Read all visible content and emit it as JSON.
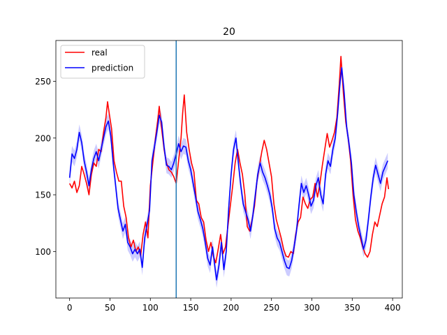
{
  "chart_data": {
    "type": "line",
    "title": "20",
    "xlabel": "",
    "ylabel": "",
    "xlim": [
      -17,
      412
    ],
    "ylim": [
      59,
      286
    ],
    "xticks": [
      0,
      50,
      100,
      150,
      200,
      250,
      300,
      350,
      400
    ],
    "yticks": [
      100,
      150,
      200,
      250
    ],
    "xtick_labels": [
      "0",
      "50",
      "100",
      "150",
      "200",
      "250",
      "300",
      "350",
      "400"
    ],
    "ytick_labels": [
      "100",
      "150",
      "200",
      "250"
    ],
    "legend": {
      "position": "top-left",
      "entries": [
        "real",
        "prediction"
      ]
    },
    "vline": {
      "x": 132,
      "color": "#1f77b4"
    },
    "series": [
      {
        "name": "real",
        "color": "#ff0000",
        "points": [
          [
            0,
            160
          ],
          [
            3,
            156
          ],
          [
            6,
            162
          ],
          [
            9,
            152
          ],
          [
            12,
            158
          ],
          [
            15,
            175
          ],
          [
            18,
            168
          ],
          [
            21,
            160
          ],
          [
            24,
            150
          ],
          [
            27,
            168
          ],
          [
            30,
            178
          ],
          [
            33,
            175
          ],
          [
            36,
            190
          ],
          [
            39,
            188
          ],
          [
            42,
            205
          ],
          [
            45,
            218
          ],
          [
            47,
            232
          ],
          [
            49,
            222
          ],
          [
            52,
            208
          ],
          [
            55,
            180
          ],
          [
            58,
            170
          ],
          [
            61,
            162
          ],
          [
            64,
            162
          ],
          [
            67,
            140
          ],
          [
            70,
            130
          ],
          [
            73,
            112
          ],
          [
            76,
            104
          ],
          [
            79,
            110
          ],
          [
            82,
            100
          ],
          [
            85,
            104
          ],
          [
            88,
            96
          ],
          [
            91,
            115
          ],
          [
            94,
            126
          ],
          [
            97,
            112
          ],
          [
            100,
            158
          ],
          [
            103,
            178
          ],
          [
            106,
            198
          ],
          [
            109,
            215
          ],
          [
            111,
            228
          ],
          [
            114,
            208
          ],
          [
            117,
            190
          ],
          [
            120,
            178
          ],
          [
            123,
            172
          ],
          [
            126,
            170
          ],
          [
            129,
            166
          ],
          [
            132,
            160
          ],
          [
            135,
            180
          ],
          [
            138,
            200
          ],
          [
            140,
            222
          ],
          [
            142,
            238
          ],
          [
            145,
            205
          ],
          [
            148,
            190
          ],
          [
            151,
            178
          ],
          [
            154,
            170
          ],
          [
            157,
            145
          ],
          [
            160,
            142
          ],
          [
            163,
            130
          ],
          [
            166,
            126
          ],
          [
            169,
            110
          ],
          [
            172,
            100
          ],
          [
            175,
            108
          ],
          [
            178,
            96
          ],
          [
            181,
            90
          ],
          [
            184,
            102
          ],
          [
            187,
            115
          ],
          [
            190,
            98
          ],
          [
            193,
            104
          ],
          [
            196,
            122
          ],
          [
            199,
            140
          ],
          [
            202,
            158
          ],
          [
            205,
            178
          ],
          [
            208,
            190
          ],
          [
            211,
            178
          ],
          [
            214,
            168
          ],
          [
            217,
            150
          ],
          [
            220,
            122
          ],
          [
            223,
            118
          ],
          [
            226,
            128
          ],
          [
            229,
            140
          ],
          [
            232,
            162
          ],
          [
            235,
            175
          ],
          [
            238,
            188
          ],
          [
            241,
            198
          ],
          [
            244,
            190
          ],
          [
            247,
            178
          ],
          [
            250,
            166
          ],
          [
            253,
            142
          ],
          [
            256,
            128
          ],
          [
            259,
            120
          ],
          [
            262,
            112
          ],
          [
            265,
            102
          ],
          [
            268,
            96
          ],
          [
            271,
            95
          ],
          [
            274,
            100
          ],
          [
            277,
            98
          ],
          [
            280,
            115
          ],
          [
            283,
            126
          ],
          [
            286,
            130
          ],
          [
            289,
            148
          ],
          [
            292,
            142
          ],
          [
            295,
            138
          ],
          [
            298,
            146
          ],
          [
            301,
            148
          ],
          [
            304,
            160
          ],
          [
            307,
            148
          ],
          [
            310,
            160
          ],
          [
            313,
            176
          ],
          [
            316,
            190
          ],
          [
            319,
            204
          ],
          [
            322,
            192
          ],
          [
            325,
            198
          ],
          [
            328,
            205
          ],
          [
            331,
            218
          ],
          [
            334,
            248
          ],
          [
            336,
            272
          ],
          [
            339,
            240
          ],
          [
            342,
            214
          ],
          [
            345,
            200
          ],
          [
            348,
            180
          ],
          [
            351,
            150
          ],
          [
            354,
            128
          ],
          [
            357,
            118
          ],
          [
            360,
            112
          ],
          [
            363,
            104
          ],
          [
            366,
            98
          ],
          [
            369,
            95
          ],
          [
            372,
            100
          ],
          [
            375,
            115
          ],
          [
            378,
            126
          ],
          [
            381,
            122
          ],
          [
            384,
            132
          ],
          [
            387,
            142
          ],
          [
            390,
            148
          ],
          [
            393,
            165
          ],
          [
            395,
            155
          ]
        ]
      },
      {
        "name": "prediction",
        "color": "#0000ff",
        "band_color": "#0000ff",
        "band_halfwidth": 7,
        "points": [
          [
            0,
            165
          ],
          [
            3,
            186
          ],
          [
            6,
            182
          ],
          [
            9,
            190
          ],
          [
            12,
            205
          ],
          [
            15,
            196
          ],
          [
            18,
            180
          ],
          [
            21,
            170
          ],
          [
            24,
            158
          ],
          [
            27,
            172
          ],
          [
            30,
            182
          ],
          [
            33,
            188
          ],
          [
            36,
            180
          ],
          [
            39,
            190
          ],
          [
            42,
            200
          ],
          [
            45,
            210
          ],
          [
            48,
            215
          ],
          [
            51,
            202
          ],
          [
            54,
            178
          ],
          [
            57,
            158
          ],
          [
            60,
            138
          ],
          [
            63,
            128
          ],
          [
            66,
            118
          ],
          [
            69,
            124
          ],
          [
            72,
            108
          ],
          [
            75,
            104
          ],
          [
            78,
            98
          ],
          [
            81,
            102
          ],
          [
            84,
            98
          ],
          [
            87,
            102
          ],
          [
            90,
            86
          ],
          [
            93,
            112
          ],
          [
            96,
            124
          ],
          [
            99,
            136
          ],
          [
            102,
            180
          ],
          [
            105,
            192
          ],
          [
            108,
            205
          ],
          [
            111,
            220
          ],
          [
            114,
            214
          ],
          [
            117,
            192
          ],
          [
            120,
            176
          ],
          [
            123,
            175
          ],
          [
            126,
            172
          ],
          [
            129,
            178
          ],
          [
            132,
            186
          ],
          [
            135,
            195
          ],
          [
            138,
            188
          ],
          [
            141,
            193
          ],
          [
            144,
            192
          ],
          [
            147,
            180
          ],
          [
            150,
            172
          ],
          [
            153,
            160
          ],
          [
            156,
            148
          ],
          [
            159,
            135
          ],
          [
            162,
            128
          ],
          [
            165,
            120
          ],
          [
            168,
            108
          ],
          [
            171,
            94
          ],
          [
            174,
            88
          ],
          [
            177,
            104
          ],
          [
            180,
            86
          ],
          [
            182,
            75
          ],
          [
            185,
            88
          ],
          [
            188,
            108
          ],
          [
            191,
            84
          ],
          [
            194,
            100
          ],
          [
            197,
            138
          ],
          [
            200,
            168
          ],
          [
            203,
            190
          ],
          [
            206,
            200
          ],
          [
            209,
            178
          ],
          [
            212,
            158
          ],
          [
            215,
            142
          ],
          [
            218,
            135
          ],
          [
            221,
            128
          ],
          [
            224,
            118
          ],
          [
            227,
            132
          ],
          [
            230,
            150
          ],
          [
            233,
            168
          ],
          [
            236,
            178
          ],
          [
            239,
            170
          ],
          [
            242,
            165
          ],
          [
            245,
            158
          ],
          [
            248,
            150
          ],
          [
            251,
            138
          ],
          [
            254,
            120
          ],
          [
            257,
            112
          ],
          [
            260,
            108
          ],
          [
            263,
            100
          ],
          [
            266,
            92
          ],
          [
            269,
            86
          ],
          [
            272,
            85
          ],
          [
            275,
            92
          ],
          [
            278,
            104
          ],
          [
            281,
            118
          ],
          [
            284,
            140
          ],
          [
            287,
            160
          ],
          [
            290,
            152
          ],
          [
            293,
            158
          ],
          [
            296,
            150
          ],
          [
            299,
            140
          ],
          [
            302,
            145
          ],
          [
            305,
            158
          ],
          [
            308,
            165
          ],
          [
            311,
            150
          ],
          [
            314,
            142
          ],
          [
            317,
            168
          ],
          [
            320,
            180
          ],
          [
            323,
            175
          ],
          [
            326,
            190
          ],
          [
            329,
            200
          ],
          [
            332,
            222
          ],
          [
            335,
            250
          ],
          [
            337,
            262
          ],
          [
            340,
            240
          ],
          [
            343,
            210
          ],
          [
            346,
            195
          ],
          [
            349,
            178
          ],
          [
            352,
            150
          ],
          [
            355,
            135
          ],
          [
            358,
            122
          ],
          [
            361,
            112
          ],
          [
            364,
            102
          ],
          [
            367,
            110
          ],
          [
            370,
            128
          ],
          [
            373,
            148
          ],
          [
            376,
            165
          ],
          [
            379,
            176
          ],
          [
            382,
            168
          ],
          [
            385,
            160
          ],
          [
            388,
            170
          ],
          [
            391,
            175
          ],
          [
            394,
            180
          ]
        ]
      }
    ]
  }
}
